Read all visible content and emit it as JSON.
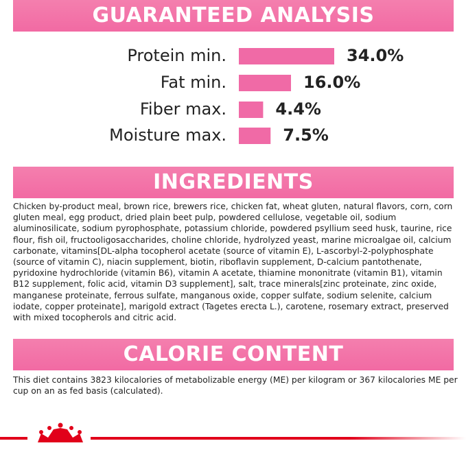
{
  "chart_data": {
    "type": "bar",
    "title": "GUARANTEED ANALYSIS",
    "categories": [
      "Protein min.",
      "Fat min.",
      "Fiber max.",
      "Moisture max."
    ],
    "values": [
      34.0,
      16.0,
      4.4,
      7.5
    ],
    "value_labels": [
      "34.0%",
      "16.0%",
      "4.4%",
      "7.5%"
    ],
    "color": "#f06aa6"
  },
  "ingredients": {
    "title": "INGREDIENTS",
    "text": "Chicken by-product meal, brown rice, brewers rice, chicken fat, wheat gluten, natural flavors, corn, corn gluten meal, egg product, dried plain beet pulp, powdered cellulose, vegetable oil, sodium aluminosilicate, sodium pyrophosphate, potassium chloride, powdered psyllium seed husk, taurine, rice flour, fish oil, fructooligosaccharides, choline chloride, hydrolyzed yeast, marine microalgae oil, calcium carbonate, vitamins[DL-alpha tocopherol acetate (source of vitamin E), L-ascorbyl-2-polyphosphate (source of vitamin C), niacin supplement, biotin, riboflavin supplement, D-calcium pantothenate, pyridoxine hydrochloride (vitamin B6), vitamin A acetate, thiamine mononitrate (vitamin B1), vitamin B12 supplement, folic acid, vitamin D3 supplement], salt, trace minerals[zinc proteinate, zinc oxide, manganese proteinate, ferrous sulfate, manganous oxide, copper sulfate, sodium selenite, calcium iodate, copper proteinate], marigold extract (Tagetes erecta L.), carotene, rosemary extract, preserved with mixed tocopherols and citric acid."
  },
  "calorie_content": {
    "title": "CALORIE CONTENT",
    "text": "This diet contains 3823 kilocalories of metabolizable energy (ME) per kilogram or 367 kilocalories ME per cup on an as fed basis (calculated)."
  }
}
